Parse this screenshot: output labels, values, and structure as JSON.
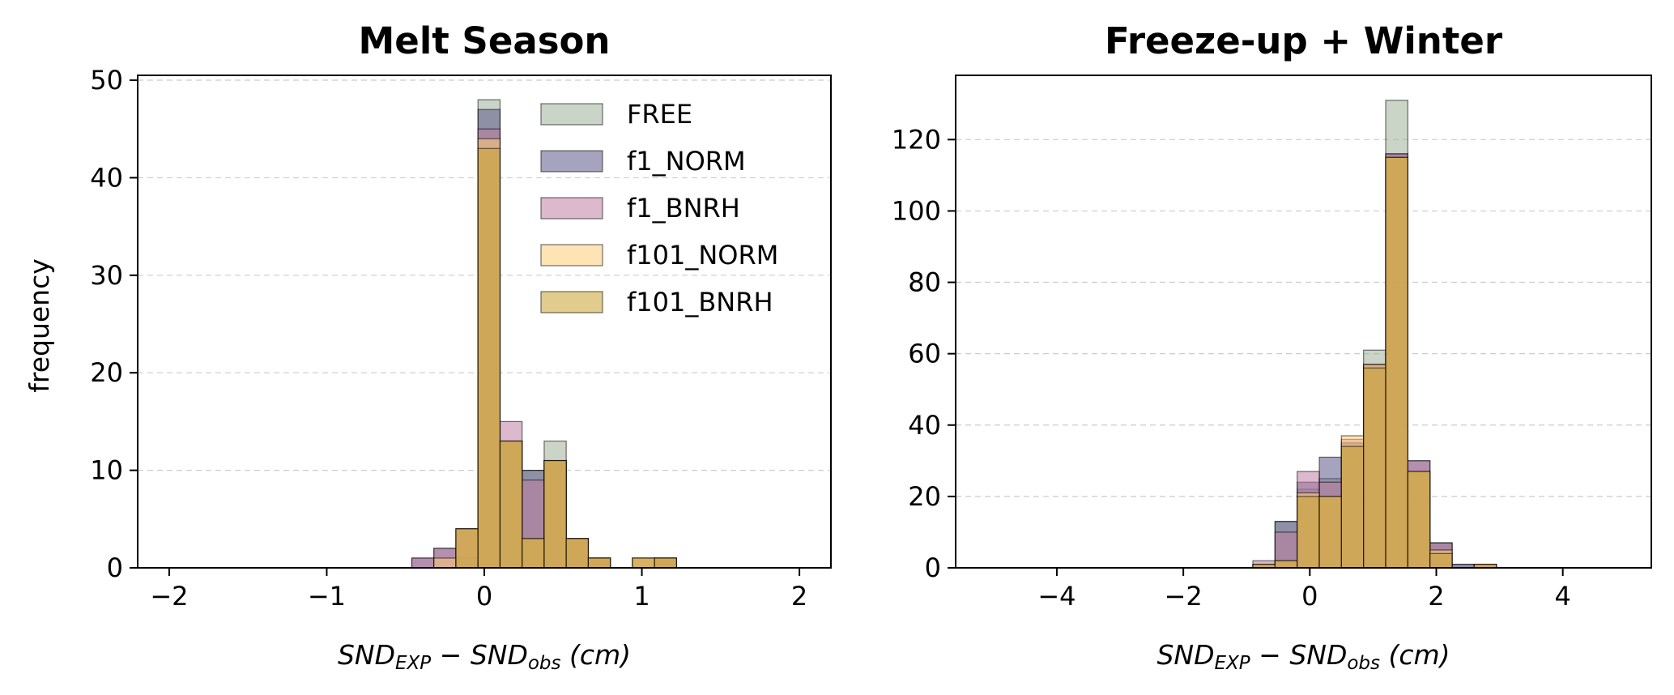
{
  "figure": {
    "ylabel": "frequency"
  },
  "legend": {
    "placement": "upper-right-of-left-panel",
    "entries": [
      {
        "name": "FREE",
        "color": "#9fb29a"
      },
      {
        "name": "f1_NORM",
        "color": "#5d5889"
      },
      {
        "name": "f1_BNRH",
        "color": "#c07fa3"
      },
      {
        "name": "f101_NORM",
        "color": "#fdcc76"
      },
      {
        "name": "f101_BNRH",
        "color": "#c9a32f"
      }
    ]
  },
  "chart_data": [
    {
      "type": "bar",
      "title": "Melt Season",
      "xlabel": {
        "base": "SND",
        "sub1": "EXP",
        "minus": " − ",
        "sub2": "obs",
        "unit": " (cm)"
      },
      "ylabel": "frequency",
      "xlim": [
        -2.2,
        2.2
      ],
      "ylim": [
        0,
        50.5
      ],
      "xticks": [
        -2,
        -1,
        0,
        1,
        2
      ],
      "xtick_labels": [
        "−2",
        "−1",
        "0",
        "1",
        "2"
      ],
      "yticks": [
        0,
        10,
        20,
        30,
        40,
        50
      ],
      "ytick_labels": [
        "0",
        "10",
        "20",
        "30",
        "40",
        "50"
      ],
      "grid": "y-dashed",
      "bin_edges": [
        -0.46,
        -0.32,
        -0.18,
        -0.04,
        0.1,
        0.24,
        0.38,
        0.52,
        0.66,
        0.8,
        0.94,
        1.08,
        1.22
      ],
      "series": [
        {
          "name": "FREE",
          "color": "#9fb29a",
          "values": [
            0,
            0,
            1,
            48,
            13,
            10,
            13,
            3,
            1,
            0,
            0,
            1
          ]
        },
        {
          "name": "f1_NORM",
          "color": "#5d5889",
          "values": [
            1,
            2,
            4,
            47,
            13,
            10,
            11,
            3,
            1,
            0,
            0,
            1
          ]
        },
        {
          "name": "f1_BNRH",
          "color": "#c07fa3",
          "values": [
            1,
            2,
            4,
            45,
            15,
            9,
            11,
            3,
            1,
            0,
            1,
            1
          ]
        },
        {
          "name": "f101_NORM",
          "color": "#fdcc76",
          "values": [
            0,
            1,
            4,
            44,
            13,
            3,
            11,
            3,
            1,
            0,
            1,
            1
          ]
        },
        {
          "name": "f101_BNRH",
          "color": "#c9a32f",
          "values": [
            0,
            0,
            4,
            43,
            13,
            3,
            11,
            3,
            1,
            0,
            1,
            1
          ]
        }
      ]
    },
    {
      "type": "bar",
      "title": "Freeze-up + Winter",
      "xlabel": {
        "base": "SND",
        "sub1": "EXP",
        "minus": " − ",
        "sub2": "obs",
        "unit": " (cm)"
      },
      "ylabel": "",
      "xlim": [
        -5.6,
        5.4
      ],
      "ylim": [
        0,
        138
      ],
      "xticks": [
        -4,
        -2,
        0,
        2,
        4
      ],
      "xtick_labels": [
        "−4",
        "−2",
        "0",
        "2",
        "4"
      ],
      "yticks": [
        0,
        20,
        40,
        60,
        80,
        100,
        120
      ],
      "ytick_labels": [
        "0",
        "20",
        "40",
        "60",
        "80",
        "100",
        "120"
      ],
      "grid": "y-dashed",
      "bin_edges": [
        -0.9,
        -0.55,
        -0.2,
        0.15,
        0.5,
        0.85,
        1.2,
        1.55,
        1.9,
        2.25,
        2.6,
        2.95
      ],
      "series": [
        {
          "name": "FREE",
          "color": "#9fb29a",
          "values": [
            1,
            13,
            22,
            25,
            35,
            61,
            131,
            27,
            7,
            1,
            1
          ]
        },
        {
          "name": "f1_NORM",
          "color": "#5d5889",
          "values": [
            1,
            13,
            24,
            31,
            35,
            57,
            116,
            30,
            7,
            1,
            1
          ]
        },
        {
          "name": "f1_BNRH",
          "color": "#c07fa3",
          "values": [
            2,
            10,
            27,
            24,
            36,
            57,
            116,
            30,
            7,
            0,
            1
          ]
        },
        {
          "name": "f101_NORM",
          "color": "#fdcc76",
          "values": [
            1,
            2,
            21,
            20,
            37,
            57,
            115,
            27,
            5,
            0,
            1
          ]
        },
        {
          "name": "f101_BNRH",
          "color": "#c9a32f",
          "values": [
            1,
            2,
            20,
            20,
            34,
            56,
            115,
            27,
            4,
            0,
            1
          ]
        }
      ]
    }
  ]
}
